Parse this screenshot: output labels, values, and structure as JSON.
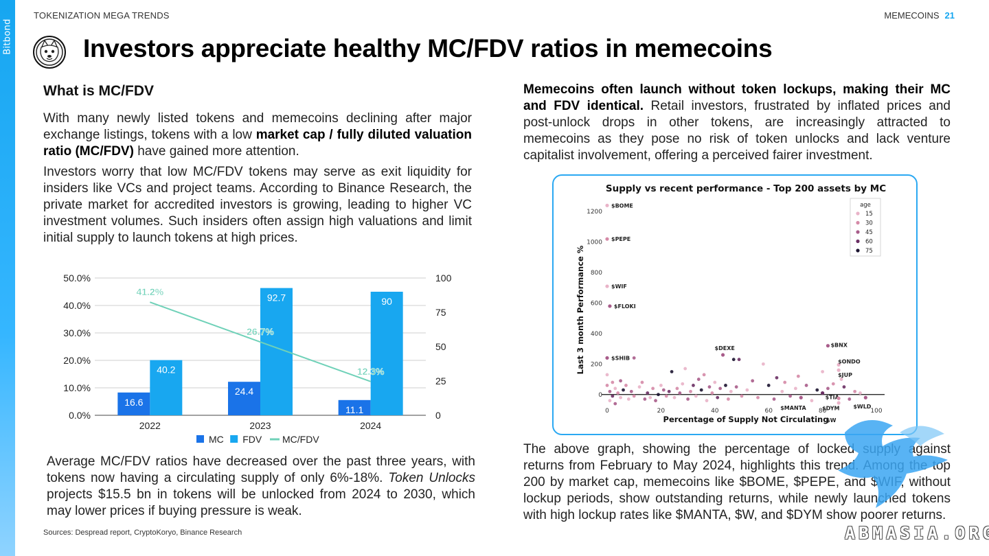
{
  "header": {
    "section": "TOKENIZATION MEGA TRENDS",
    "topic": "MEMECOINS",
    "page_number": "21",
    "brand": "Bitbond"
  },
  "title": "Investors appreciate healthy MC/FDV ratios in memecoins",
  "left": {
    "heading": "What is MC/FDV",
    "p1_a": "With many newly listed tokens and memecoins declining after major exchange listings, tokens with a low ",
    "p1_bold": "market cap / fully diluted valuation ratio (MC/FDV)",
    "p1_b": " have gained more attention.",
    "p2": "Investors worry that low MC/FDV tokens may serve as exit liquidity for insiders like VCs and project teams. According to Binance Research, the private market for accredited investors is growing, leading to higher VC investment volumes. Such insiders often assign high valuations and limit initial supply to launch tokens at high prices.",
    "p3_a": "Average MC/FDV ratios have decreased over the past three years, with tokens now having a circulating supply of only 6%-18%. ",
    "p3_italic": "Token Unlocks",
    "p3_b": " projects $15.5 bn in tokens will be unlocked from 2024 to 2030, which may lower prices if buying pressure is weak.",
    "sources": "Sources: Despread report, CryptoKoryo, Binance Research"
  },
  "right": {
    "p4_bold": "Memecoins often launch without token lockups, making their MC and FDV identical.",
    "p4_rest": " Retail investors, frustrated by inflated prices and post-unlock drops in other tokens, are increasingly attracted to memecoins as they pose no risk of token unlocks and lack venture capitalist involvement, offering a perceived fairer investment.",
    "p5": "The above graph, showing the percentage of locked supply against returns from February to May 2024, highlights this trend. Among the top 200 by market cap, memecoins like $BOME, $PEPE, and $WIF, without lockup periods, show outstanding returns, while newly launched tokens with high lockup rates like $MANTA, $W, and $DYM show poorer returns."
  },
  "watermark": "ABMASIA.ORG",
  "colors": {
    "accent": "#16a6f0",
    "mc": "#1a73e8",
    "fdv": "#18a7f0",
    "ratio": "#6fd1b8"
  },
  "chart_data": [
    {
      "type": "bar",
      "categories": [
        "2022",
        "2023",
        "2024"
      ],
      "series": [
        {
          "name": "MC",
          "values": [
            16.6,
            24.4,
            11.1
          ],
          "axis": "right"
        },
        {
          "name": "FDV",
          "values": [
            40.2,
            92.7,
            90
          ],
          "axis": "right"
        },
        {
          "name": "MC/FDV",
          "type": "line",
          "values": [
            41.2,
            26.7,
            12.3
          ],
          "labels": [
            "41.2%",
            "26.7%",
            "12.3%"
          ],
          "axis": "left"
        }
      ],
      "left_ticks": [
        "0.0%",
        "10.0%",
        "20.0%",
        "30.0%",
        "40.0%",
        "50.0%"
      ],
      "right_ticks": [
        "0",
        "25",
        "50",
        "75",
        "100"
      ],
      "ylim_left": [
        0,
        50
      ],
      "ylim_right": [
        0,
        100
      ],
      "legend": "bottom",
      "grid": true
    },
    {
      "type": "scatter",
      "title": "Supply vs recent performance - Top 200 assets by MC",
      "xlabel": "Percentage of Supply Not Circulating",
      "ylabel": "Last 3 month Performance %",
      "xlim": [
        0,
        100
      ],
      "ylim": [
        -100,
        1300
      ],
      "x_ticks": [
        "0",
        "20",
        "40",
        "60",
        "80",
        "100"
      ],
      "y_ticks": [
        "0",
        "200",
        "400",
        "600",
        "800",
        "1000",
        "1200"
      ],
      "legend_title": "age",
      "legend_entries": [
        "15",
        "30",
        "45",
        "60",
        "75"
      ],
      "legend_colors": [
        "#e9b3c8",
        "#d58aa7",
        "#a85c8a",
        "#6a2f63",
        "#1c1430"
      ],
      "labeled_points": [
        {
          "label": "$BOME",
          "x": 0,
          "y": 1240,
          "age": 15
        },
        {
          "label": "$PEPE",
          "x": 0,
          "y": 1020,
          "age": 30
        },
        {
          "label": "$WIF",
          "x": 0,
          "y": 710,
          "age": 15
        },
        {
          "label": "$FLOKI",
          "x": 1,
          "y": 580,
          "age": 45
        },
        {
          "label": "$SHIB",
          "x": 0,
          "y": 240,
          "age": 45
        },
        {
          "label": "$DEXE",
          "x": 43,
          "y": 260,
          "age": 45
        },
        {
          "label": "$BNX",
          "x": 82,
          "y": 320,
          "age": 45
        },
        {
          "label": "$ONDO",
          "x": 86,
          "y": 195,
          "age": 15
        },
        {
          "label": "$JUP",
          "x": 86,
          "y": 160,
          "age": 15
        },
        {
          "label": "$MANTA",
          "x": 72,
          "y": -20,
          "age": 45
        },
        {
          "label": "$TIA",
          "x": 80,
          "y": 10,
          "age": 60
        },
        {
          "label": "$DYM",
          "x": 86,
          "y": -25,
          "age": 30
        },
        {
          "label": "$W",
          "x": 86,
          "y": -55,
          "age": 15
        },
        {
          "label": "$WLD",
          "x": 96,
          "y": -20,
          "age": 45
        }
      ],
      "points": [
        {
          "x": 0,
          "y": 130,
          "age": 15
        },
        {
          "x": 0,
          "y": 60,
          "age": 30
        },
        {
          "x": 1,
          "y": 20,
          "age": 45
        },
        {
          "x": 1,
          "y": -40,
          "age": 15
        },
        {
          "x": 2,
          "y": 80,
          "age": 30
        },
        {
          "x": 2,
          "y": -10,
          "age": 60
        },
        {
          "x": 3,
          "y": 40,
          "age": 15
        },
        {
          "x": 3,
          "y": -60,
          "age": 45
        },
        {
          "x": 4,
          "y": 10,
          "age": 30
        },
        {
          "x": 5,
          "y": 90,
          "age": 45
        },
        {
          "x": 5,
          "y": -20,
          "age": 15
        },
        {
          "x": 6,
          "y": 30,
          "age": 75
        },
        {
          "x": 7,
          "y": 60,
          "age": 30
        },
        {
          "x": 8,
          "y": -30,
          "age": 15
        },
        {
          "x": 9,
          "y": 20,
          "age": 45
        },
        {
          "x": 10,
          "y": 240,
          "age": 45
        },
        {
          "x": 10,
          "y": -10,
          "age": 30
        },
        {
          "x": 12,
          "y": 50,
          "age": 15
        },
        {
          "x": 13,
          "y": 80,
          "age": 30
        },
        {
          "x": 14,
          "y": -30,
          "age": 45
        },
        {
          "x": 15,
          "y": 10,
          "age": 60
        },
        {
          "x": 16,
          "y": -20,
          "age": 15
        },
        {
          "x": 17,
          "y": 40,
          "age": 30
        },
        {
          "x": 18,
          "y": -40,
          "age": 45
        },
        {
          "x": 19,
          "y": 0,
          "age": 75
        },
        {
          "x": 20,
          "y": 60,
          "age": 15
        },
        {
          "x": 21,
          "y": 30,
          "age": 45
        },
        {
          "x": 22,
          "y": -10,
          "age": 30
        },
        {
          "x": 23,
          "y": 20,
          "age": 60
        },
        {
          "x": 24,
          "y": 150,
          "age": 75
        },
        {
          "x": 25,
          "y": -20,
          "age": 15
        },
        {
          "x": 26,
          "y": 40,
          "age": 30
        },
        {
          "x": 27,
          "y": 10,
          "age": 45
        },
        {
          "x": 28,
          "y": 70,
          "age": 15
        },
        {
          "x": 29,
          "y": 170,
          "age": 15
        },
        {
          "x": 30,
          "y": -30,
          "age": 45
        },
        {
          "x": 31,
          "y": 20,
          "age": 30
        },
        {
          "x": 32,
          "y": 60,
          "age": 60
        },
        {
          "x": 33,
          "y": -10,
          "age": 15
        },
        {
          "x": 34,
          "y": 100,
          "age": 45
        },
        {
          "x": 35,
          "y": 30,
          "age": 75
        },
        {
          "x": 36,
          "y": 130,
          "age": 30
        },
        {
          "x": 37,
          "y": -40,
          "age": 15
        },
        {
          "x": 38,
          "y": 50,
          "age": 45
        },
        {
          "x": 39,
          "y": 10,
          "age": 30
        },
        {
          "x": 40,
          "y": 80,
          "age": 15
        },
        {
          "x": 41,
          "y": -20,
          "age": 60
        },
        {
          "x": 42,
          "y": 40,
          "age": 45
        },
        {
          "x": 44,
          "y": 60,
          "age": 75
        },
        {
          "x": 45,
          "y": -30,
          "age": 30
        },
        {
          "x": 46,
          "y": 20,
          "age": 15
        },
        {
          "x": 47,
          "y": 230,
          "age": 75
        },
        {
          "x": 49,
          "y": 230,
          "age": 60
        },
        {
          "x": 48,
          "y": 50,
          "age": 45
        },
        {
          "x": 50,
          "y": -10,
          "age": 30
        },
        {
          "x": 52,
          "y": 30,
          "age": 15
        },
        {
          "x": 54,
          "y": 90,
          "age": 45
        },
        {
          "x": 56,
          "y": -20,
          "age": 30
        },
        {
          "x": 58,
          "y": 200,
          "age": 15
        },
        {
          "x": 60,
          "y": 60,
          "age": 75
        },
        {
          "x": 62,
          "y": -30,
          "age": 45
        },
        {
          "x": 63,
          "y": 110,
          "age": 60
        },
        {
          "x": 65,
          "y": 20,
          "age": 15
        },
        {
          "x": 66,
          "y": 80,
          "age": 30
        },
        {
          "x": 68,
          "y": -10,
          "age": 45
        },
        {
          "x": 70,
          "y": 40,
          "age": 15
        },
        {
          "x": 71,
          "y": 120,
          "age": 30
        },
        {
          "x": 74,
          "y": 60,
          "age": 45
        },
        {
          "x": 76,
          "y": -40,
          "age": 15
        },
        {
          "x": 78,
          "y": 30,
          "age": 75
        },
        {
          "x": 80,
          "y": 150,
          "age": 15
        },
        {
          "x": 82,
          "y": 40,
          "age": 45
        },
        {
          "x": 84,
          "y": 70,
          "age": 30
        },
        {
          "x": 87,
          "y": 100,
          "age": 15
        },
        {
          "x": 88,
          "y": 50,
          "age": 60
        },
        {
          "x": 90,
          "y": -30,
          "age": 45
        },
        {
          "x": 92,
          "y": 20,
          "age": 30
        },
        {
          "x": 94,
          "y": 10,
          "age": 15
        }
      ]
    }
  ]
}
